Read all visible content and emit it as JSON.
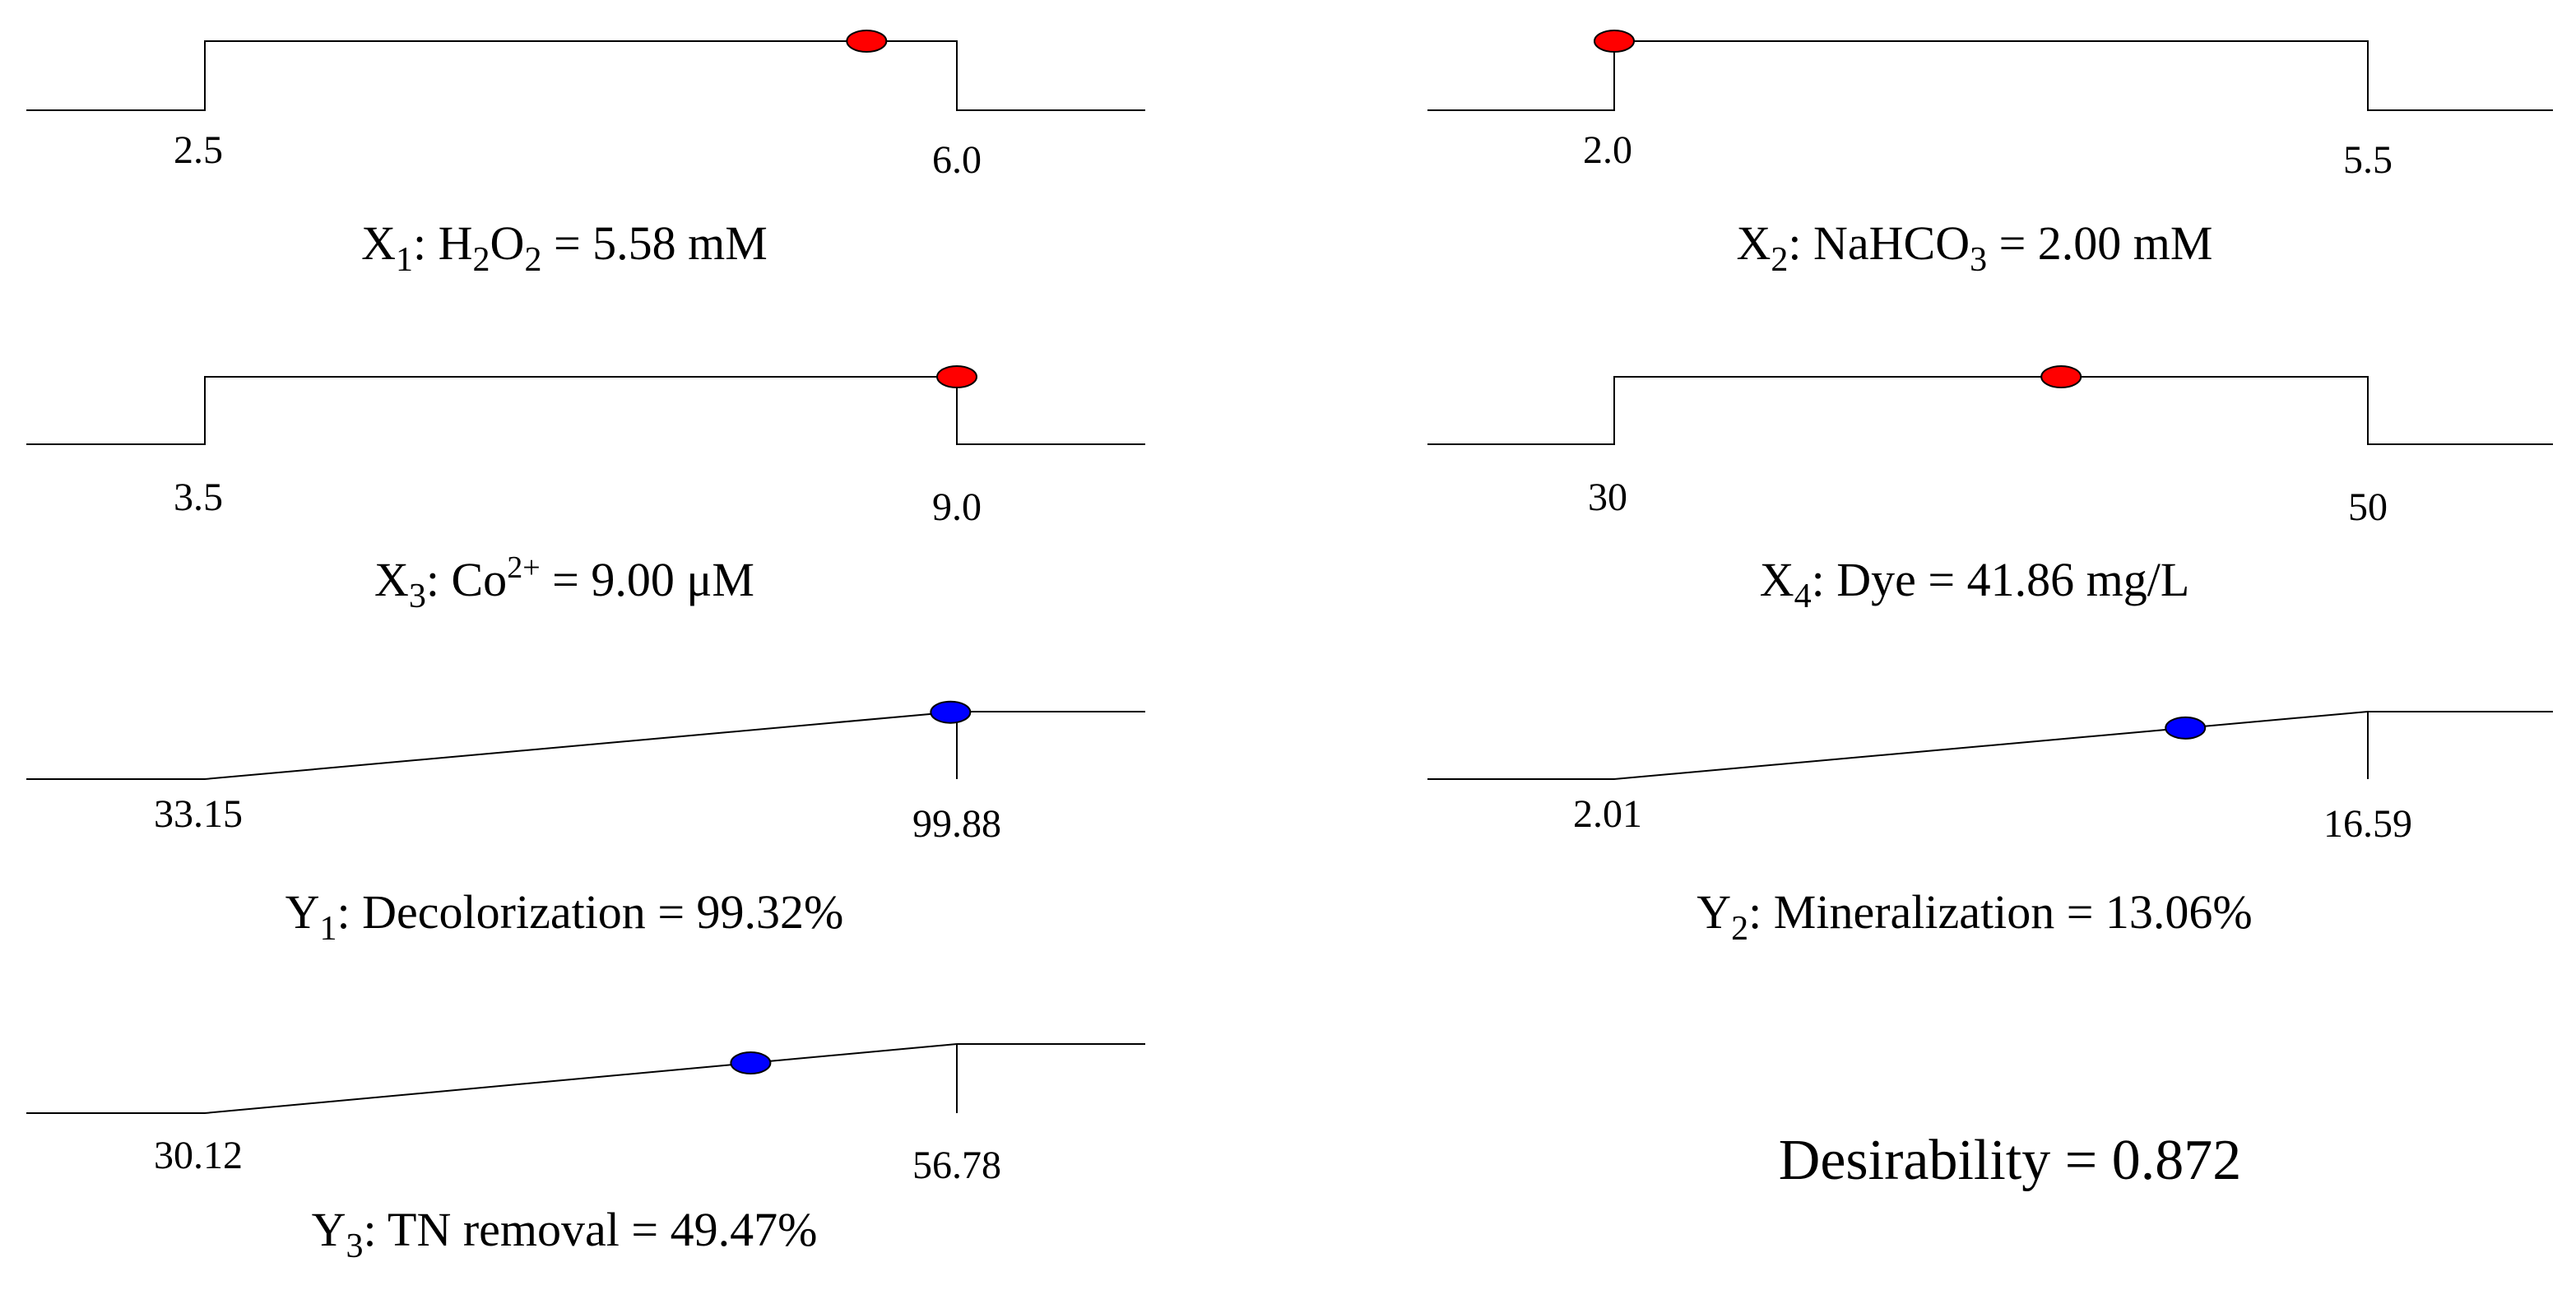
{
  "panels": [
    {
      "kind": "factor",
      "var": "X",
      "sub": "1",
      "label_parts": [
        {
          "t": "H"
        },
        {
          "t": "2",
          "sub": true
        },
        {
          "t": "O"
        },
        {
          "t": "2",
          "sub": true
        }
      ],
      "value_text": "5.58 mM",
      "low_label": "2.5",
      "high_label": "6.0",
      "low": 2.5,
      "high": 6.0,
      "value": 5.58,
      "marker_color": "#ff0000"
    },
    {
      "kind": "factor",
      "var": "X",
      "sub": "2",
      "label_parts": [
        {
          "t": "NaHCO"
        },
        {
          "t": "3",
          "sub": true
        }
      ],
      "value_text": "2.00 mM",
      "low_label": "2.0",
      "high_label": "5.5",
      "low": 2.0,
      "high": 5.5,
      "value": 2.0,
      "marker_color": "#ff0000"
    },
    {
      "kind": "factor",
      "var": "X",
      "sub": "3",
      "label_parts": [
        {
          "t": "Co"
        },
        {
          "t": "2+",
          "sup": true
        }
      ],
      "value_text": "9.00 μM",
      "low_label": "3.5",
      "high_label": "9.0",
      "low": 3.5,
      "high": 9.0,
      "value": 9.0,
      "marker_color": "#ff0000"
    },
    {
      "kind": "factor",
      "var": "X",
      "sub": "4",
      "label_parts": [
        {
          "t": "Dye"
        }
      ],
      "value_text": "41.86 mg/L",
      "low_label": "30",
      "high_label": "50",
      "low": 30,
      "high": 50,
      "value": 41.86,
      "marker_color": "#ff0000"
    },
    {
      "kind": "response",
      "var": "Y",
      "sub": "1",
      "label_parts": [
        {
          "t": "Decolorization"
        }
      ],
      "value_text": "99.32%",
      "low_label": "33.15",
      "high_label": "99.88",
      "low": 33.15,
      "high": 99.88,
      "value": 99.32,
      "marker_color": "#0000ff"
    },
    {
      "kind": "response",
      "var": "Y",
      "sub": "2",
      "label_parts": [
        {
          "t": "Mineralization"
        }
      ],
      "value_text": "13.06%",
      "low_label": "2.01",
      "high_label": "16.59",
      "low": 2.01,
      "high": 16.59,
      "value": 13.06,
      "marker_color": "#0000ff"
    },
    {
      "kind": "response",
      "var": "Y",
      "sub": "3",
      "label_parts": [
        {
          "t": "TN removal"
        }
      ],
      "value_text": "49.47%",
      "low_label": "30.12",
      "high_label": "56.78",
      "low": 30.12,
      "high": 56.78,
      "value": 49.47,
      "marker_color": "#0000ff"
    }
  ],
  "desirability": {
    "label": "Desirability",
    "value_text": "0.872"
  },
  "chart_data": {
    "type": "desirability-ramps",
    "title": "",
    "factors": [
      {
        "name": "X1: H2O2",
        "unit": "mM",
        "low": 2.5,
        "high": 6.0,
        "value": 5.58
      },
      {
        "name": "X2: NaHCO3",
        "unit": "mM",
        "low": 2.0,
        "high": 5.5,
        "value": 2.0
      },
      {
        "name": "X3: Co2+",
        "unit": "μM",
        "low": 3.5,
        "high": 9.0,
        "value": 9.0
      },
      {
        "name": "X4: Dye",
        "unit": "mg/L",
        "low": 30,
        "high": 50,
        "value": 41.86
      }
    ],
    "responses": [
      {
        "name": "Y1: Decolorization",
        "unit": "%",
        "low": 33.15,
        "high": 99.88,
        "value": 99.32,
        "goal": "maximize"
      },
      {
        "name": "Y2: Mineralization",
        "unit": "%",
        "low": 2.01,
        "high": 16.59,
        "value": 13.06,
        "goal": "maximize"
      },
      {
        "name": "Y3: TN removal",
        "unit": "%",
        "low": 30.12,
        "high": 56.78,
        "value": 49.47,
        "goal": "maximize"
      }
    ],
    "desirability": 0.872
  }
}
